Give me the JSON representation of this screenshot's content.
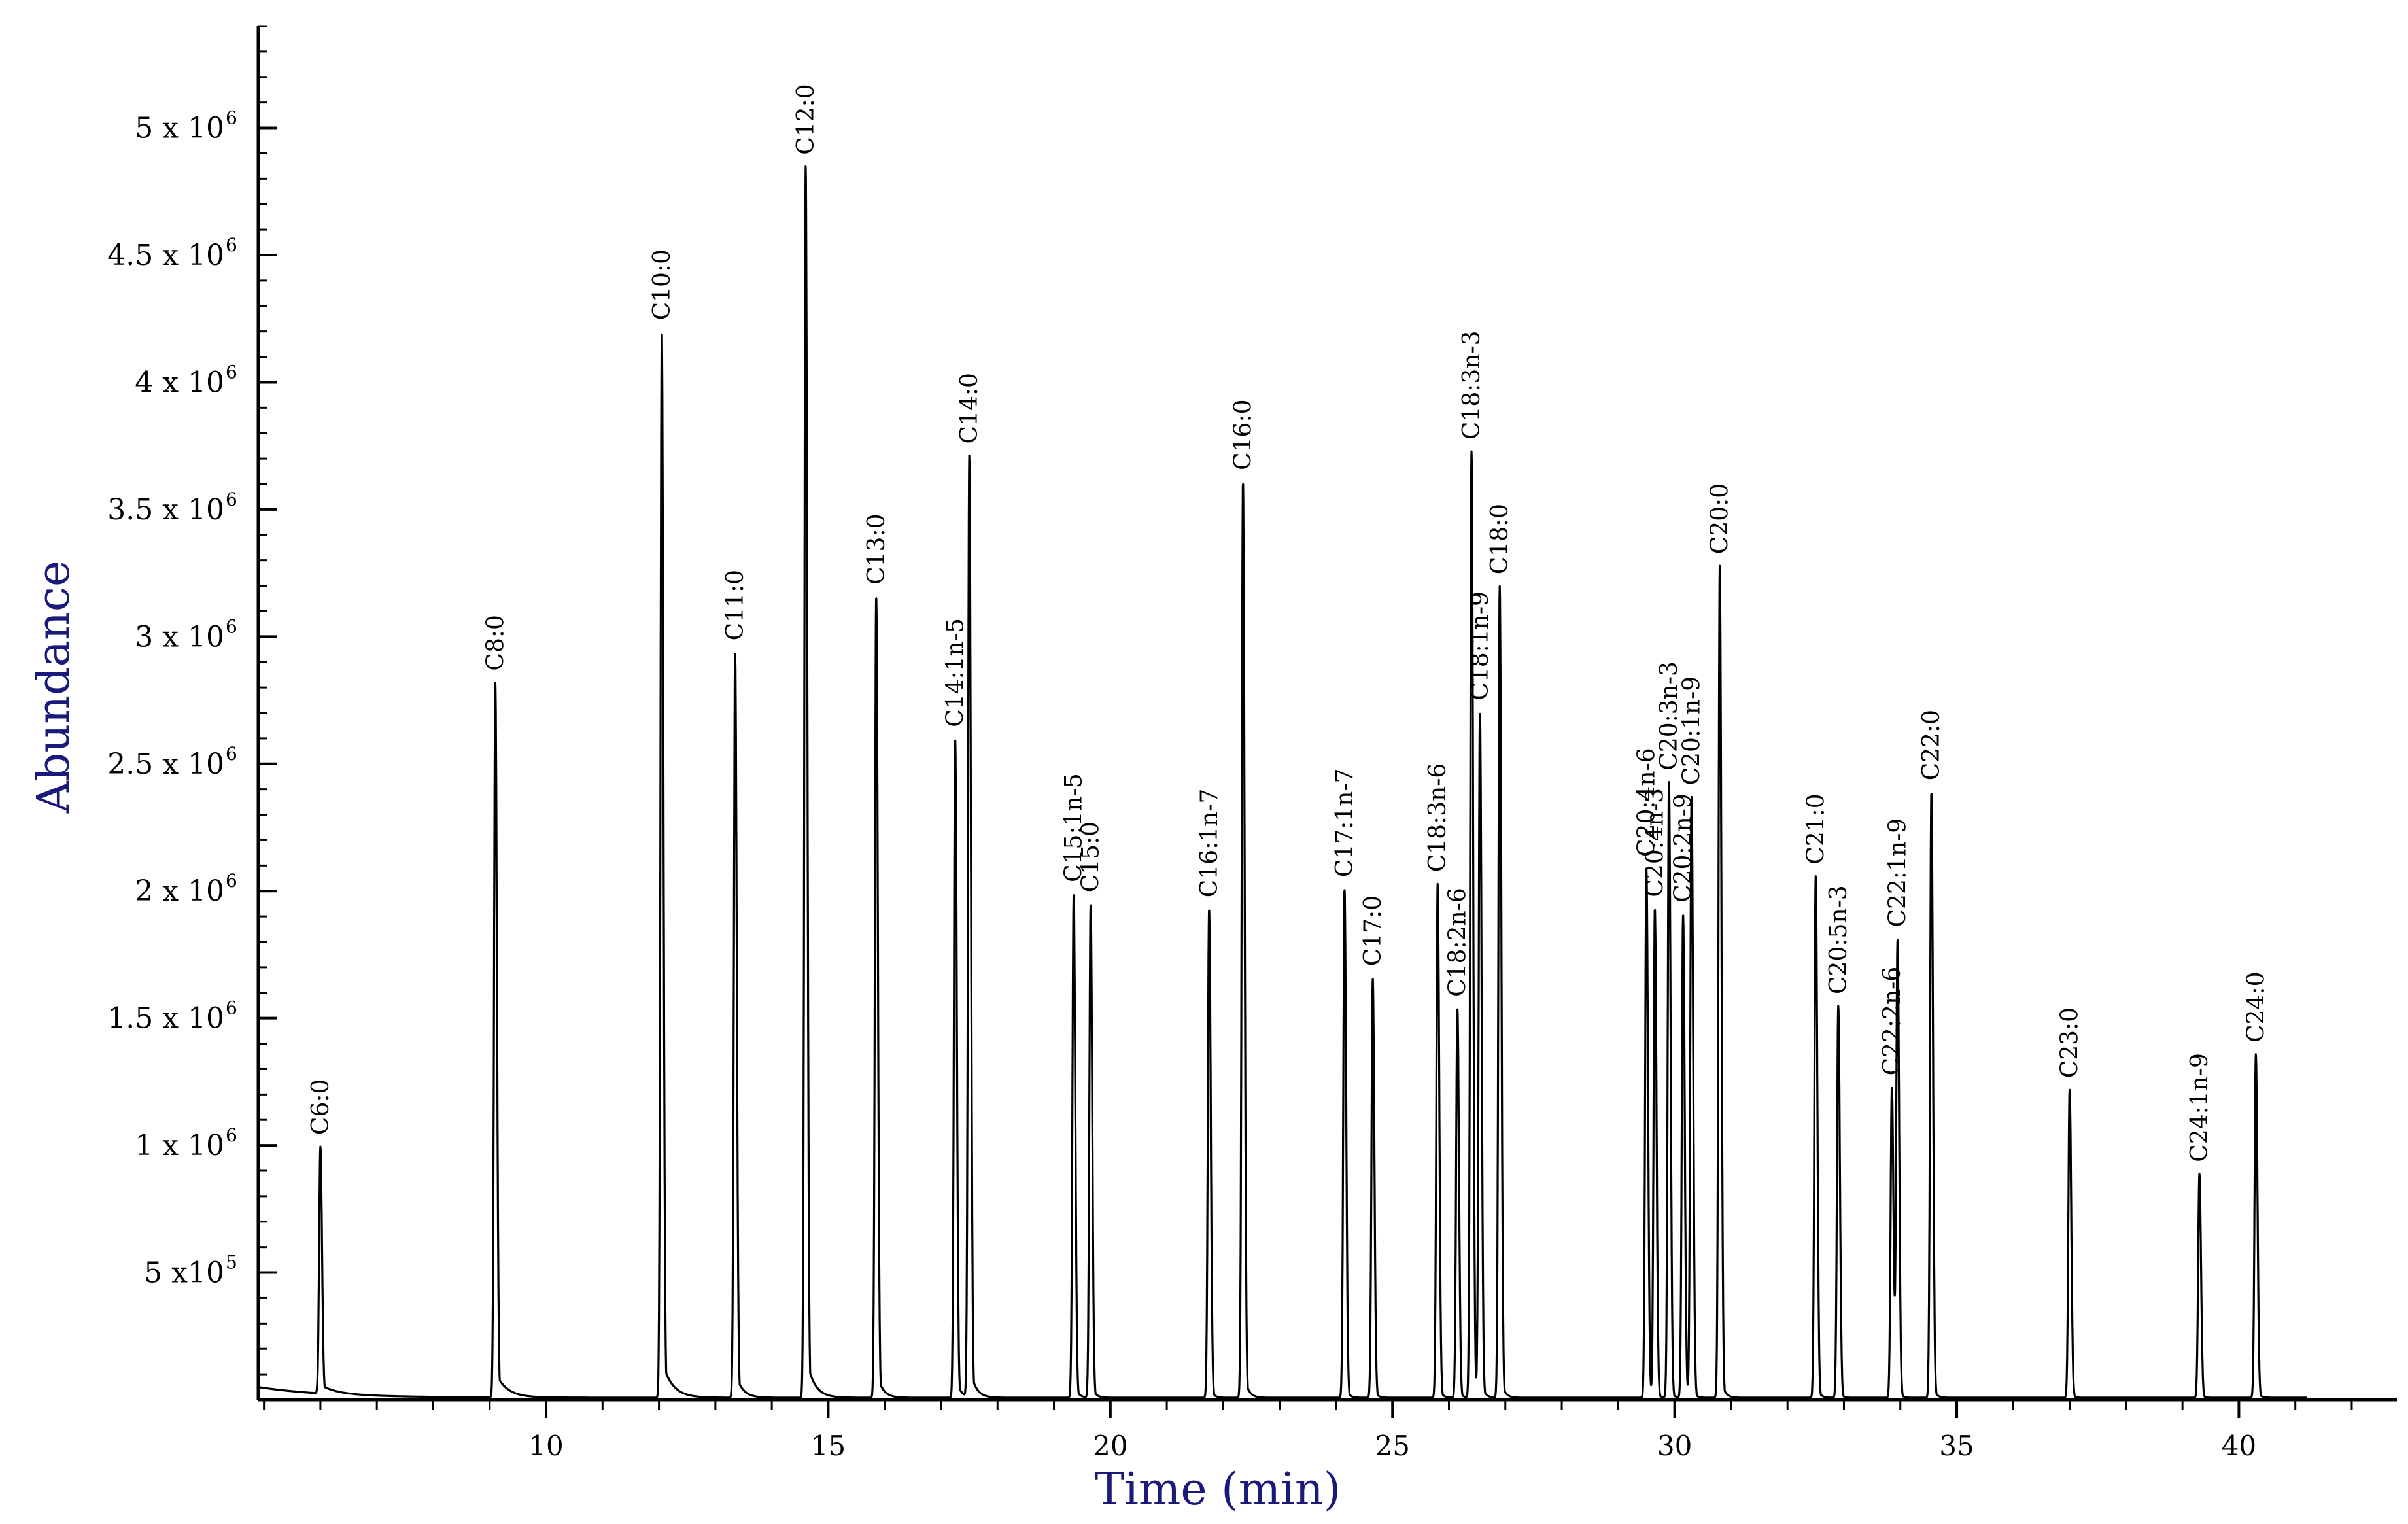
{
  "chart_data": {
    "type": "line",
    "title": "",
    "xlabel": "Time (min)",
    "ylabel": "Abundance",
    "xlim": [
      4.9,
      42.8
    ],
    "ylim": [
      0,
      5.4
    ],
    "y_unit": "x 10^6",
    "x_ticks": [
      10,
      15,
      20,
      25,
      30,
      35,
      40
    ],
    "y_ticks": [
      {
        "value": 0.5,
        "mantissa": "5",
        "sep": " x10",
        "exp": "5"
      },
      {
        "value": 1.0,
        "mantissa": "1",
        "sep": " x 10",
        "exp": "6"
      },
      {
        "value": 1.5,
        "mantissa": "1.5",
        "sep": " x 10",
        "exp": "6"
      },
      {
        "value": 2.0,
        "mantissa": "2",
        "sep": " x 10",
        "exp": "6"
      },
      {
        "value": 2.5,
        "mantissa": "2.5",
        "sep": " x 10",
        "exp": "6"
      },
      {
        "value": 3.0,
        "mantissa": "3",
        "sep": " x 10",
        "exp": "6"
      },
      {
        "value": 3.5,
        "mantissa": "3.5",
        "sep": " x 10",
        "exp": "6"
      },
      {
        "value": 4.0,
        "mantissa": "4",
        "sep": " x 10",
        "exp": "6"
      },
      {
        "value": 4.5,
        "mantissa": "4.5",
        "sep": " x 10",
        "exp": "6"
      },
      {
        "value": 5.0,
        "mantissa": "5",
        "sep": " x 10",
        "exp": "6"
      }
    ],
    "grid": false,
    "legend": "none",
    "baseline_start": 0.05,
    "series": [
      {
        "peaks": [
          {
            "label": "C6:0",
            "time": 6.0,
            "abundance": 0.97,
            "tail": 0.28
          },
          {
            "label": "C8:0",
            "time": 9.1,
            "abundance": 2.81,
            "tail": 0.2
          },
          {
            "label": "C10:0",
            "time": 12.05,
            "abundance": 4.19,
            "tail": 0.18
          },
          {
            "label": "C11:0",
            "time": 13.35,
            "abundance": 2.93,
            "tail": 0.12
          },
          {
            "label": "C12:0",
            "time": 14.6,
            "abundance": 4.84,
            "tail": 0.14
          },
          {
            "label": "C13:0",
            "time": 15.85,
            "abundance": 3.15,
            "tail": 0.1
          },
          {
            "label": "C14:1n-5",
            "time": 17.25,
            "abundance": 2.59,
            "tail": 0.08
          },
          {
            "label": "C14:0",
            "time": 17.5,
            "abundance": 3.7,
            "tail": 0.1
          },
          {
            "label": "C15:1n-5",
            "time": 19.35,
            "abundance": 1.98,
            "tail": 0.06
          },
          {
            "label": "C15:0",
            "time": 19.65,
            "abundance": 1.94,
            "tail": 0.06
          },
          {
            "label": "C16:1n-7",
            "time": 21.75,
            "abundance": 1.92,
            "tail": 0.05
          },
          {
            "label": "C16:0",
            "time": 22.35,
            "abundance": 3.6,
            "tail": 0.07
          },
          {
            "label": "C17:1n-7",
            "time": 24.15,
            "abundance": 2.0,
            "tail": 0.05
          },
          {
            "label": "C17:0",
            "time": 24.65,
            "abundance": 1.65,
            "tail": 0.05
          },
          {
            "label": "C18:3n-6",
            "time": 25.8,
            "abundance": 2.02,
            "tail": 0.05
          },
          {
            "label": "C18:2n-6",
            "time": 26.15,
            "abundance": 1.53,
            "tail": 0.05
          },
          {
            "label": "C18:3n-3",
            "time": 26.4,
            "abundance": 3.72,
            "tail": 0.07
          },
          {
            "label": "C18:1n-9",
            "time": 26.55,
            "abundance": 2.68,
            "tail": 0.05
          },
          {
            "label": "C18:0",
            "time": 26.9,
            "abundance": 3.19,
            "tail": 0.06
          },
          {
            "label": "C20:4n-6",
            "time": 29.5,
            "abundance": 2.08,
            "tail": 0.04
          },
          {
            "label": "C20:4n-3",
            "time": 29.65,
            "abundance": 1.92,
            "tail": 0.04
          },
          {
            "label": "C20:3n-3",
            "time": 29.9,
            "abundance": 2.42,
            "tail": 0.04
          },
          {
            "label": "C20:2n-9",
            "time": 30.15,
            "abundance": 1.9,
            "tail": 0.04
          },
          {
            "label": "C20:1n-9",
            "time": 30.3,
            "abundance": 2.36,
            "tail": 0.04
          },
          {
            "label": "C20:0",
            "time": 30.8,
            "abundance": 3.27,
            "tail": 0.06
          },
          {
            "label": "C21:0",
            "time": 32.5,
            "abundance": 2.05,
            "tail": 0.05
          },
          {
            "label": "C20:5n-3",
            "time": 32.9,
            "abundance": 1.54,
            "tail": 0.04
          },
          {
            "label": "C22:2n-6",
            "time": 33.85,
            "abundance": 1.22,
            "tail": 0.04
          },
          {
            "label": "C22:1n-9",
            "time": 33.95,
            "abundance": 1.8,
            "tail": 0.04
          },
          {
            "label": "C22:0",
            "time": 34.55,
            "abundance": 2.38,
            "tail": 0.05
          },
          {
            "label": "C23:0",
            "time": 37.0,
            "abundance": 1.21,
            "tail": 0.04
          },
          {
            "label": "C24:1n-9",
            "time": 39.3,
            "abundance": 0.88,
            "tail": 0.04
          },
          {
            "label": "C24:0",
            "time": 40.3,
            "abundance": 1.35,
            "tail": 0.05
          }
        ]
      }
    ]
  }
}
